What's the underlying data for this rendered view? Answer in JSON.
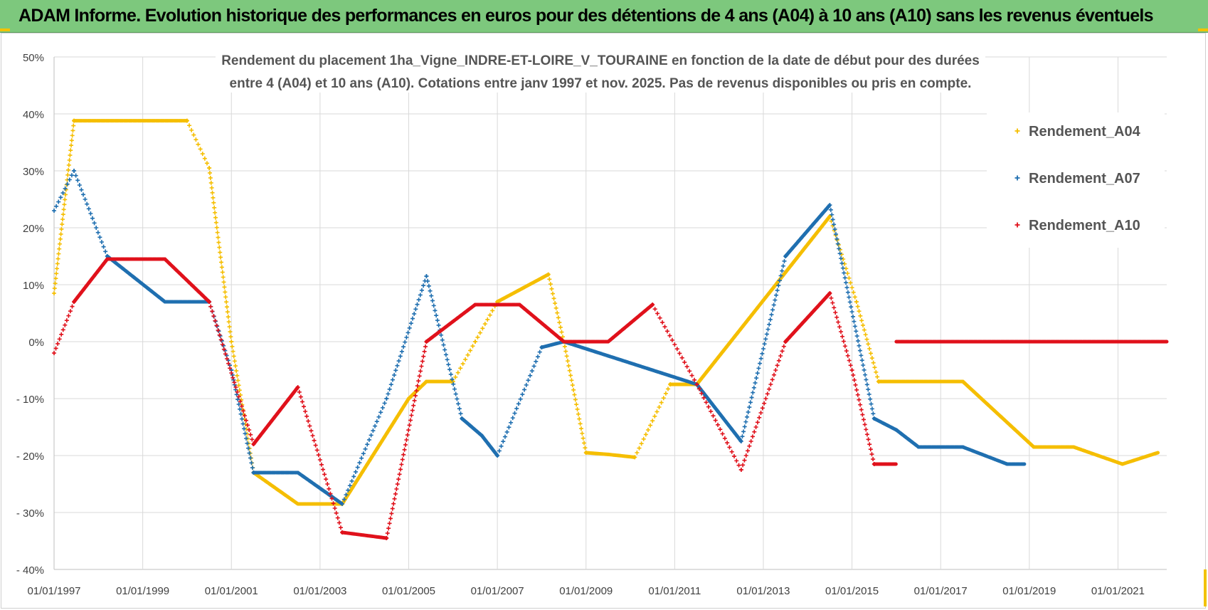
{
  "banner": {
    "title": "ADAM Informe. Evolution historique des performances en euros pour des détentions de 4 ans (A04) à 10 ans (A10) sans les revenus éventuels"
  },
  "colors": {
    "banner_bg": "#7dc87d",
    "A04": "#f5be00",
    "A07": "#1f6fb0",
    "A10": "#e0111b",
    "grid": "#d9d9d9",
    "accent": "#f2c200"
  },
  "chart_data": {
    "type": "scatter",
    "title_lines": [
      "Rendement du placement 1ha_Vigne_INDRE-ET-LOIRE_V_TOURAINE en fonction de la date de début pour des durées",
      "entre 4 (A04) et 10 ans (A10). Cotations entre janv 1997 et nov. 2025. Pas de revenus disponibles ou pris en compte."
    ],
    "xlabel": "",
    "ylabel": "",
    "xlim": [
      1997.0,
      2022.1
    ],
    "ylim": [
      -40,
      50
    ],
    "y_ticks": [
      -40,
      -30,
      -20,
      -10,
      0,
      10,
      20,
      30,
      40,
      50
    ],
    "y_tick_labels": [
      "- 40%",
      "- 30%",
      "- 20%",
      "- 10%",
      "0%",
      "10%",
      "20%",
      "30%",
      "40%",
      "50%"
    ],
    "x_ticks": [
      1997,
      1999,
      2001,
      2003,
      2005,
      2007,
      2009,
      2011,
      2013,
      2015,
      2017,
      2019,
      2021
    ],
    "x_tick_labels": [
      "01/01/1997",
      "01/01/1999",
      "01/01/2001",
      "01/01/2003",
      "01/01/2005",
      "01/01/2007",
      "01/01/2009",
      "01/01/2011",
      "01/01/2013",
      "01/01/2015",
      "01/01/2017",
      "01/01/2019",
      "01/01/2021"
    ],
    "grid": true,
    "legend_position": "right",
    "marker": "+",
    "series": [
      {
        "name": "Rendement_A04",
        "color": "#f5be00",
        "points": [
          [
            1997.0,
            8.5
          ],
          [
            1997.45,
            38.8
          ],
          [
            2000.0,
            38.8
          ],
          [
            2000.5,
            30.5
          ],
          [
            2001.0,
            0.0
          ],
          [
            2001.5,
            -23.0
          ],
          [
            2002.5,
            -28.5
          ],
          [
            2003.5,
            -28.5
          ],
          [
            2005.0,
            -10.0
          ],
          [
            2005.4,
            -7.0
          ],
          [
            2006.0,
            -7.0
          ],
          [
            2006.5,
            0.0
          ],
          [
            2007.0,
            7.0
          ],
          [
            2008.15,
            11.8
          ],
          [
            2008.5,
            0.0
          ],
          [
            2009.0,
            -19.5
          ],
          [
            2009.5,
            -19.8
          ],
          [
            2010.1,
            -20.3
          ],
          [
            2010.9,
            -7.5
          ],
          [
            2011.5,
            -7.5
          ],
          [
            2014.5,
            22.0
          ],
          [
            2015.1,
            7.0
          ],
          [
            2015.6,
            -7.0
          ],
          [
            2017.5,
            -7.0
          ],
          [
            2019.1,
            -18.5
          ],
          [
            2020.0,
            -18.5
          ],
          [
            2021.1,
            -21.5
          ],
          [
            2021.9,
            -19.5
          ]
        ]
      },
      {
        "name": "Rendement_A07",
        "color": "#1f6fb0",
        "points": [
          [
            1997.0,
            23.0
          ],
          [
            1997.45,
            30.0
          ],
          [
            1998.2,
            15.0
          ],
          [
            1999.5,
            7.0
          ],
          [
            2000.5,
            7.0
          ],
          [
            2001.0,
            -5.0
          ],
          [
            2001.5,
            -23.0
          ],
          [
            2002.5,
            -23.0
          ],
          [
            2003.5,
            -28.5
          ],
          [
            2004.5,
            -10.0
          ],
          [
            2005.4,
            11.5
          ],
          [
            2006.2,
            -13.5
          ],
          [
            2006.65,
            -16.5
          ],
          [
            2007.0,
            -20.0
          ],
          [
            2008.0,
            -1.0
          ],
          [
            2008.5,
            0.0
          ],
          [
            2011.5,
            -7.5
          ],
          [
            2012.5,
            -17.5
          ],
          [
            2013.5,
            15.0
          ],
          [
            2014.5,
            24.0
          ],
          [
            2015.5,
            -13.5
          ],
          [
            2016.0,
            -15.5
          ],
          [
            2016.5,
            -18.5
          ],
          [
            2017.5,
            -18.5
          ],
          [
            2018.5,
            -21.5
          ],
          [
            2018.9,
            -21.5
          ]
        ]
      },
      {
        "name": "Rendement_A10",
        "color": "#e0111b",
        "points": [
          [
            1997.0,
            -2.0
          ],
          [
            1997.45,
            7.0
          ],
          [
            1998.2,
            14.5
          ],
          [
            1999.5,
            14.5
          ],
          [
            2000.5,
            7.0
          ],
          [
            2001.5,
            -18.0
          ],
          [
            2002.5,
            -8.0
          ],
          [
            2003.5,
            -33.5
          ],
          [
            2004.5,
            -34.5
          ],
          [
            2005.4,
            0.0
          ],
          [
            2006.5,
            6.5
          ],
          [
            2007.5,
            6.5
          ],
          [
            2008.5,
            0.0
          ],
          [
            2009.5,
            0.0
          ],
          [
            2010.5,
            6.5
          ],
          [
            2011.5,
            -7.5
          ],
          [
            2012.5,
            -22.5
          ],
          [
            2013.5,
            0.0
          ],
          [
            2014.5,
            8.5
          ],
          [
            2015.0,
            -5.0
          ],
          [
            2015.5,
            -21.5
          ],
          [
            2016.0,
            -21.5
          ]
        ]
      },
      {
        "name": "Rendement_A10",
        "color": "#e0111b",
        "show_in_legend": false,
        "points": [
          [
            2016.0,
            0.0
          ],
          [
            2022.1,
            0.0
          ]
        ]
      }
    ]
  }
}
